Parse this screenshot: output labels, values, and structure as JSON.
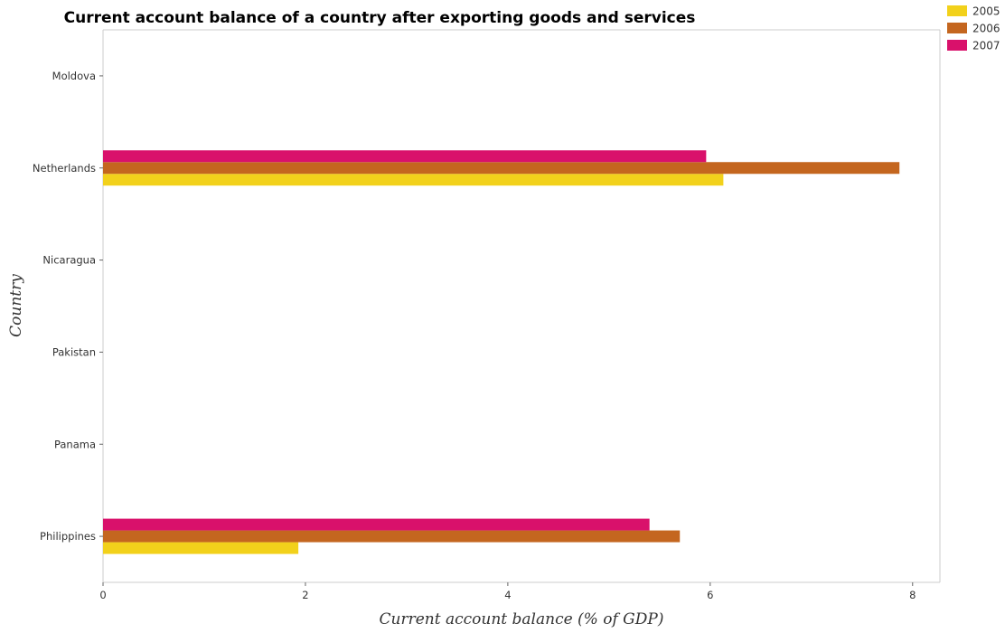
{
  "chart_data": {
    "type": "bar",
    "orientation": "horizontal",
    "title": "Current account balance of a country after exporting goods and services",
    "xlabel": "Current account balance (% of GDP)",
    "ylabel": "Country",
    "categories": [
      "Moldova",
      "Netherlands",
      "Nicaragua",
      "Pakistan",
      "Panama",
      "Philippines"
    ],
    "series": [
      {
        "name": "2005",
        "color": "#f2d11b",
        "values": [
          0,
          6.13,
          0,
          0,
          0,
          1.93
        ]
      },
      {
        "name": "2006",
        "color": "#c4661f",
        "values": [
          0,
          7.87,
          0,
          0,
          0,
          5.7
        ]
      },
      {
        "name": "2007",
        "color": "#d9116b",
        "values": [
          0,
          5.96,
          0,
          0,
          0,
          5.4
        ]
      }
    ],
    "xlim": [
      0,
      8.27
    ],
    "xticks": [
      0,
      2,
      4,
      6,
      8
    ],
    "xtick_labels": [
      "0",
      "2",
      "4",
      "6",
      "8"
    ],
    "grid": false,
    "legend_position": "top-right"
  }
}
